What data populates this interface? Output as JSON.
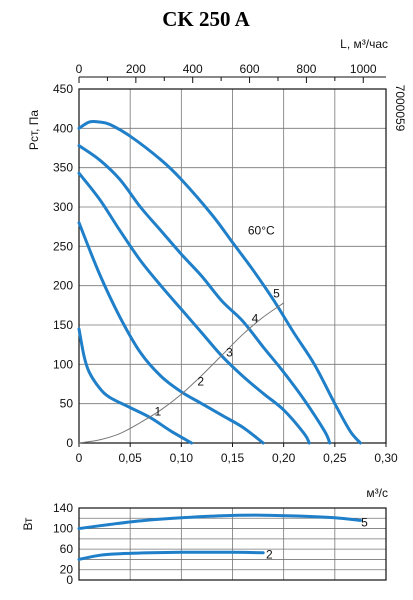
{
  "chart_data": [
    {
      "type": "line",
      "title": "CK 250 A",
      "code_label": "7000059",
      "xlabel": "м³/с",
      "ylabel": "Рст, Па",
      "top_axis_label": "L, м³/час",
      "xlim": [
        0,
        0.3
      ],
      "ylim": [
        0,
        450
      ],
      "top_xlim": [
        0,
        1080
      ],
      "x_ticks": [
        "0",
        "0,05",
        "0,10",
        "0,15",
        "0,20",
        "0,25",
        "0,30"
      ],
      "y_ticks": [
        "0",
        "50",
        "100",
        "150",
        "200",
        "250",
        "300",
        "350",
        "400",
        "450"
      ],
      "top_ticks": [
        "0",
        "200",
        "400",
        "600",
        "800",
        "1000"
      ],
      "grid": true,
      "annotation": "60°C",
      "series": [
        {
          "name": "1",
          "x": [
            0,
            0.005,
            0.01,
            0.02,
            0.03,
            0.05,
            0.07,
            0.09,
            0.11
          ],
          "y": [
            145,
            110,
            90,
            70,
            58,
            45,
            32,
            15,
            0
          ]
        },
        {
          "name": "2",
          "x": [
            0,
            0.02,
            0.04,
            0.06,
            0.08,
            0.1,
            0.12,
            0.14,
            0.16,
            0.18
          ],
          "y": [
            280,
            215,
            160,
            115,
            85,
            65,
            50,
            35,
            20,
            0
          ]
        },
        {
          "name": "3",
          "x": [
            0,
            0.02,
            0.04,
            0.06,
            0.08,
            0.1,
            0.12,
            0.14,
            0.16,
            0.18,
            0.2,
            0.22,
            0.225
          ],
          "y": [
            343,
            310,
            270,
            232,
            200,
            170,
            140,
            110,
            85,
            63,
            42,
            12,
            0
          ]
        },
        {
          "name": "4",
          "x": [
            0,
            0.02,
            0.04,
            0.06,
            0.08,
            0.1,
            0.12,
            0.14,
            0.16,
            0.18,
            0.2,
            0.22,
            0.24,
            0.245
          ],
          "y": [
            378,
            360,
            335,
            300,
            270,
            240,
            212,
            180,
            155,
            122,
            90,
            55,
            15,
            0
          ]
        },
        {
          "name": "5",
          "x": [
            0,
            0.01,
            0.02,
            0.03,
            0.05,
            0.08,
            0.1,
            0.13,
            0.15,
            0.17,
            0.19,
            0.21,
            0.23,
            0.25,
            0.265,
            0.275
          ],
          "y": [
            400,
            408,
            408,
            405,
            390,
            360,
            335,
            290,
            255,
            220,
            182,
            140,
            100,
            50,
            15,
            0
          ]
        },
        {
          "name": "system",
          "x": [
            0,
            0.02,
            0.04,
            0.06,
            0.08,
            0.1,
            0.12,
            0.14,
            0.16,
            0.18,
            0.2
          ],
          "y": [
            0,
            4,
            12,
            26,
            42,
            62,
            86,
            112,
            138,
            160,
            178
          ]
        }
      ],
      "curve_labels": [
        {
          "text": "1",
          "x": 0.077,
          "y": 40
        },
        {
          "text": "2",
          "x": 0.119,
          "y": 78
        },
        {
          "text": "3",
          "x": 0.147,
          "y": 115
        },
        {
          "text": "4",
          "x": 0.172,
          "y": 158
        },
        {
          "text": "5",
          "x": 0.193,
          "y": 190
        }
      ],
      "annotation_pos": {
        "x": 0.165,
        "y": 265
      }
    },
    {
      "type": "line",
      "ylabel": "Вт",
      "ylim": [
        0,
        140
      ],
      "y_ticks": [
        "0",
        "20",
        "60",
        "100",
        "140"
      ],
      "grid": true,
      "series": [
        {
          "name": "5",
          "x": [
            0,
            0.03,
            0.06,
            0.1,
            0.14,
            0.18,
            0.22,
            0.25,
            0.275
          ],
          "y": [
            100,
            108,
            115,
            121,
            125,
            126,
            124,
            121,
            116
          ]
        },
        {
          "name": "2",
          "x": [
            0,
            0.02,
            0.04,
            0.07,
            0.1,
            0.13,
            0.15,
            0.18
          ],
          "y": [
            40,
            48,
            51,
            53,
            54,
            54,
            54,
            53
          ]
        }
      ],
      "curve_labels": [
        {
          "text": "5",
          "x": 0.279,
          "y": 112
        },
        {
          "text": "2",
          "x": 0.186,
          "y": 50
        }
      ]
    }
  ]
}
